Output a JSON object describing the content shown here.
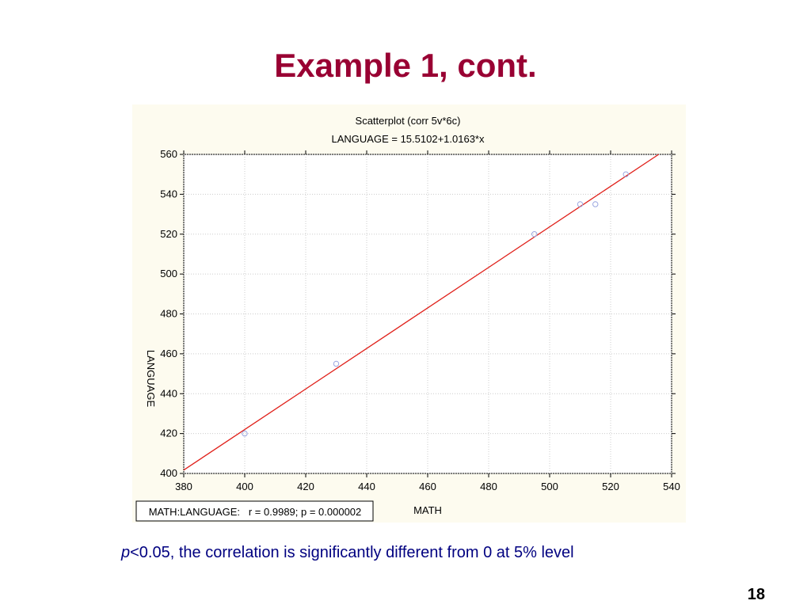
{
  "slide_title": "Example 1, cont.",
  "chart_data": {
    "type": "scatter",
    "title": "Scatterplot (corr 5v*6c)",
    "subtitle": "LANGUAGE = 15.5102+1.0163*x",
    "x_label": "MATH",
    "y_label": "LANGUAGE",
    "x": [
      400,
      430,
      495,
      510,
      515,
      525
    ],
    "values": [
      420,
      455,
      520,
      535,
      535,
      550
    ],
    "color": "#9aa6e0",
    "regression": {
      "intercept": 15.5102,
      "slope": 1.0163,
      "color": "#e0201a"
    },
    "xlim": [
      380,
      540
    ],
    "xticks": [
      380,
      400,
      420,
      440,
      460,
      480,
      500,
      520,
      540
    ],
    "ylim": [
      400,
      560
    ],
    "yticks": [
      400,
      420,
      440,
      460,
      480,
      500,
      520,
      540,
      560
    ],
    "grid": true,
    "annotation": "MATH:LANGUAGE:   r = 0.9989; p = 0.000002"
  },
  "footnote": {
    "italic": "p",
    "text": "<0.05, the correlation is significantly different from 0 at 5% level"
  },
  "page_number": "18"
}
